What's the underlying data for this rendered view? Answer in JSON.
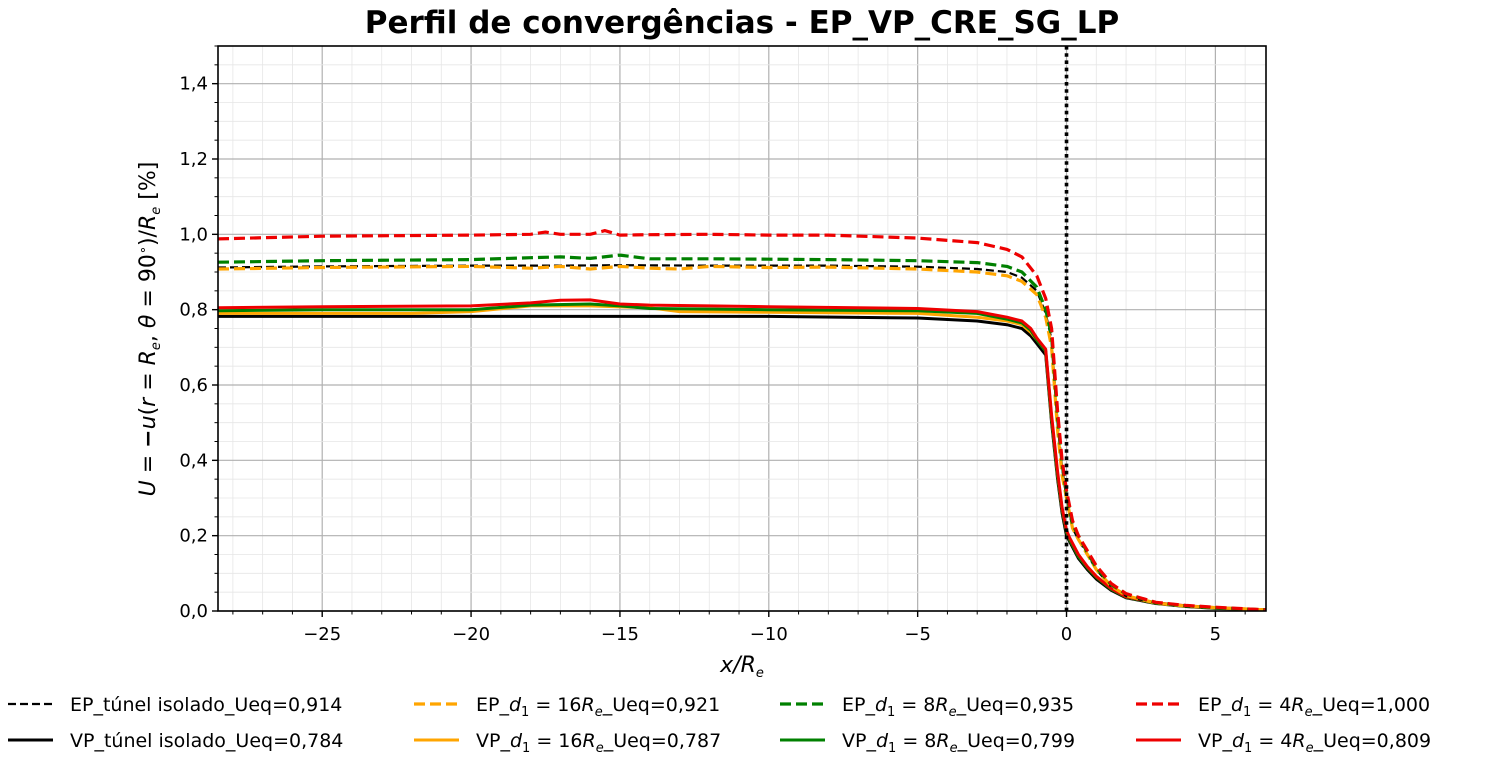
{
  "chart_data": {
    "type": "line",
    "title": "Perfil de convergências - EP_VP_CRE_SG_LP",
    "xlabel": "x/Re",
    "ylabel": "U = −u(r = Re, θ = 90°)/Re [%]",
    "xlim": [
      -28.5,
      6.7
    ],
    "ylim": [
      0.0,
      1.5
    ],
    "xticks": [
      -25,
      -20,
      -15,
      -10,
      -5,
      0,
      5
    ],
    "xtick_labels": [
      "−25",
      "−20",
      "−15",
      "−10",
      "−5",
      "0",
      "5"
    ],
    "yticks": [
      0.0,
      0.2,
      0.4,
      0.6,
      0.8,
      1.0,
      1.2,
      1.4
    ],
    "ytick_labels": [
      "0,0",
      "0,2",
      "0,4",
      "0,6",
      "0,8",
      "1,0",
      "1,2",
      "1,4"
    ],
    "grid": true,
    "minor_grid": true,
    "legend_position": "bottom",
    "reference_line": {
      "x": 0,
      "style": "dotted",
      "color": "#000000"
    },
    "series": [
      {
        "name": "EP_túnel isolado_Ueq=0,914",
        "style": "dashed",
        "color": "#000000",
        "x": [
          -28.5,
          -25,
          -20,
          -17,
          -15,
          -12,
          -8,
          -5,
          -3,
          -2,
          -1.5,
          -1,
          -0.7,
          -0.5,
          -0.3,
          -0.15,
          0,
          0.1,
          0.2,
          0.4,
          0.7,
          1,
          1.5,
          2,
          3,
          4,
          5,
          6.7
        ],
        "y": [
          0.912,
          0.915,
          0.917,
          0.917,
          0.918,
          0.917,
          0.917,
          0.914,
          0.908,
          0.9,
          0.885,
          0.85,
          0.79,
          0.72,
          0.5,
          0.38,
          0.3,
          0.26,
          0.22,
          0.19,
          0.15,
          0.11,
          0.065,
          0.04,
          0.02,
          0.012,
          0.008,
          0.003
        ]
      },
      {
        "name": "EP_d1 = 16Re_Ueq=0,921",
        "label_parts": [
          "EP_",
          "d",
          "1",
          " = 16",
          "R",
          "e",
          "_Ueq=0,921"
        ],
        "style": "dashed",
        "color": "#ffa500",
        "x": [
          -28.5,
          -25,
          -20,
          -18,
          -17,
          -16,
          -15,
          -14,
          -13,
          -12,
          -10,
          -8,
          -5,
          -3,
          -2,
          -1.5,
          -1,
          -0.7,
          -0.5,
          -0.3,
          -0.15,
          0,
          0.1,
          0.2,
          0.4,
          0.7,
          1,
          1.5,
          2,
          3,
          4,
          5,
          6.7
        ],
        "y": [
          0.908,
          0.912,
          0.915,
          0.91,
          0.915,
          0.908,
          0.915,
          0.91,
          0.908,
          0.915,
          0.912,
          0.913,
          0.908,
          0.9,
          0.89,
          0.875,
          0.84,
          0.78,
          0.7,
          0.48,
          0.36,
          0.3,
          0.26,
          0.22,
          0.19,
          0.15,
          0.11,
          0.066,
          0.041,
          0.021,
          0.013,
          0.009,
          0.003
        ]
      },
      {
        "name": "EP_d1 = 8Re_Ueq=0,935",
        "label_parts": [
          "EP_",
          "d",
          "1",
          " = 8",
          "R",
          "e",
          "_Ueq=0,935"
        ],
        "style": "dashed",
        "color": "#008000",
        "x": [
          -28.5,
          -25,
          -20,
          -18,
          -17,
          -16,
          -15,
          -14,
          -12,
          -10,
          -8,
          -5,
          -3,
          -2,
          -1.5,
          -1,
          -0.7,
          -0.5,
          -0.3,
          -0.15,
          0,
          0.1,
          0.2,
          0.4,
          0.7,
          1,
          1.5,
          2,
          3,
          4,
          5,
          6.7
        ],
        "y": [
          0.926,
          0.93,
          0.933,
          0.938,
          0.94,
          0.936,
          0.945,
          0.935,
          0.935,
          0.934,
          0.933,
          0.93,
          0.925,
          0.915,
          0.9,
          0.86,
          0.8,
          0.73,
          0.51,
          0.39,
          0.31,
          0.27,
          0.23,
          0.2,
          0.155,
          0.115,
          0.07,
          0.045,
          0.022,
          0.014,
          0.009,
          0.003
        ]
      },
      {
        "name": "EP_d1 = 4Re_Ueq=1,000",
        "label_parts": [
          "EP_",
          "d",
          "1",
          " = 4",
          "R",
          "e",
          "_Ueq=1,000"
        ],
        "style": "dashed",
        "color": "#ee0000",
        "x": [
          -28.5,
          -25,
          -20,
          -18,
          -17.5,
          -17,
          -16,
          -15.5,
          -15,
          -14,
          -12,
          -10,
          -8,
          -5,
          -3,
          -2,
          -1.5,
          -1,
          -0.7,
          -0.5,
          -0.3,
          -0.15,
          0,
          0.1,
          0.2,
          0.4,
          0.7,
          1,
          1.5,
          2,
          3,
          4,
          5,
          6.7
        ],
        "y": [
          0.988,
          0.995,
          0.998,
          1.0,
          1.006,
          1.0,
          1.0,
          1.01,
          0.998,
          0.999,
          1.0,
          0.998,
          0.998,
          0.99,
          0.978,
          0.96,
          0.94,
          0.89,
          0.83,
          0.75,
          0.53,
          0.4,
          0.32,
          0.28,
          0.24,
          0.2,
          0.16,
          0.12,
          0.073,
          0.046,
          0.023,
          0.015,
          0.01,
          0.003
        ]
      },
      {
        "name": "VP_túnel isolado_Ueq=0,784",
        "style": "solid",
        "color": "#000000",
        "x": [
          -28.5,
          -25,
          -20,
          -15,
          -10,
          -5,
          -3,
          -2,
          -1.5,
          -1.2,
          -1,
          -0.7,
          -0.5,
          -0.3,
          -0.15,
          0,
          0.1,
          0.2,
          0.4,
          0.7,
          1,
          1.5,
          2,
          3,
          4,
          5,
          6.7
        ],
        "y": [
          0.782,
          0.782,
          0.782,
          0.782,
          0.782,
          0.778,
          0.77,
          0.76,
          0.75,
          0.73,
          0.71,
          0.68,
          0.5,
          0.35,
          0.26,
          0.2,
          0.185,
          0.17,
          0.14,
          0.11,
          0.085,
          0.055,
          0.035,
          0.02,
          0.012,
          0.007,
          0.003
        ]
      },
      {
        "name": "VP_d1 = 16Re_Ueq=0,787",
        "label_parts": [
          "VP_",
          "d",
          "1",
          " = 16",
          "R",
          "e",
          "_Ueq=0,787"
        ],
        "style": "solid",
        "color": "#ffa500",
        "x": [
          -28.5,
          -25,
          -22,
          -20,
          -18,
          -16,
          -14,
          -13,
          -10,
          -5,
          -3,
          -2,
          -1.5,
          -1.2,
          -1,
          -0.7,
          -0.5,
          -0.3,
          -0.15,
          0,
          0.1,
          0.2,
          0.4,
          0.7,
          1,
          1.5,
          2,
          3,
          4,
          5,
          6.7
        ],
        "y": [
          0.79,
          0.79,
          0.79,
          0.795,
          0.81,
          0.81,
          0.805,
          0.795,
          0.793,
          0.79,
          0.78,
          0.77,
          0.76,
          0.74,
          0.72,
          0.69,
          0.51,
          0.36,
          0.27,
          0.21,
          0.19,
          0.175,
          0.145,
          0.115,
          0.09,
          0.058,
          0.037,
          0.021,
          0.013,
          0.008,
          0.003
        ]
      },
      {
        "name": "VP_d1 = 8Re_Ueq=0,799",
        "label_parts": [
          "VP_",
          "d",
          "1",
          " = 8",
          "R",
          "e",
          "_Ueq=0,799"
        ],
        "style": "solid",
        "color": "#008000",
        "x": [
          -28.5,
          -25,
          -20,
          -18,
          -16,
          -15,
          -14,
          -10,
          -5,
          -3,
          -2,
          -1.5,
          -1.2,
          -1,
          -0.7,
          -0.5,
          -0.3,
          -0.15,
          0,
          0.1,
          0.2,
          0.4,
          0.7,
          1,
          1.5,
          2,
          3,
          4,
          5,
          6.7
        ],
        "y": [
          0.797,
          0.8,
          0.8,
          0.812,
          0.815,
          0.81,
          0.803,
          0.8,
          0.797,
          0.79,
          0.775,
          0.765,
          0.745,
          0.72,
          0.69,
          0.51,
          0.36,
          0.27,
          0.21,
          0.19,
          0.175,
          0.145,
          0.115,
          0.09,
          0.058,
          0.037,
          0.021,
          0.013,
          0.008,
          0.003
        ]
      },
      {
        "name": "VP_d1 = 4Re_Ueq=0,809",
        "label_parts": [
          "VP_",
          "d",
          "1",
          " = 4",
          "R",
          "e",
          "_Ueq=0,809"
        ],
        "style": "solid",
        "color": "#ee0000",
        "x": [
          -28.5,
          -25,
          -20,
          -18,
          -17,
          -16,
          -15,
          -14,
          -12,
          -10,
          -5,
          -3,
          -2,
          -1.5,
          -1.2,
          -1,
          -0.7,
          -0.5,
          -0.3,
          -0.15,
          0,
          0.1,
          0.2,
          0.4,
          0.7,
          1,
          1.5,
          2,
          3,
          4,
          5,
          6.7
        ],
        "y": [
          0.805,
          0.808,
          0.81,
          0.818,
          0.825,
          0.826,
          0.815,
          0.812,
          0.81,
          0.808,
          0.803,
          0.795,
          0.78,
          0.77,
          0.75,
          0.725,
          0.695,
          0.52,
          0.37,
          0.275,
          0.215,
          0.195,
          0.18,
          0.15,
          0.118,
          0.092,
          0.06,
          0.038,
          0.022,
          0.014,
          0.009,
          0.003
        ]
      }
    ]
  }
}
